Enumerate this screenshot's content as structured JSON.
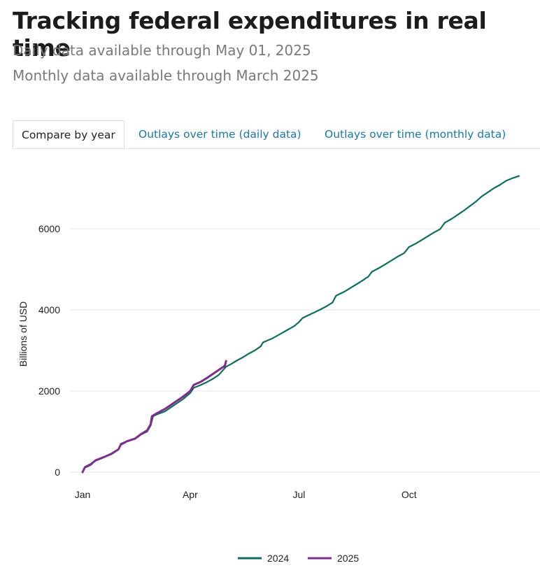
{
  "header": {
    "title": "Tracking federal expenditures in real time",
    "daily_note": "Daily data available through May 01, 2025",
    "monthly_note": "Monthly data available through March 2025"
  },
  "tabs": [
    {
      "label": "Compare by year",
      "active": true
    },
    {
      "label": "Outlays over time (daily data)",
      "active": false
    },
    {
      "label": "Outlays over time (monthly data)",
      "active": false
    }
  ],
  "chart_data": {
    "type": "line",
    "title": "",
    "xlabel": "",
    "ylabel": "Billions of USD",
    "x_unit": "day_of_year",
    "x_ticks": [
      {
        "label": "Jan",
        "day": 1
      },
      {
        "label": "Apr",
        "day": 91
      },
      {
        "label": "Jul",
        "day": 182
      },
      {
        "label": "Oct",
        "day": 274
      }
    ],
    "xlim": [
      1,
      366
    ],
    "ylim": [
      0,
      7500
    ],
    "y_ticks": [
      0,
      2000,
      4000,
      6000
    ],
    "grid": "horizontal",
    "legend_position": "bottom",
    "series": [
      {
        "name": "2024",
        "color": "#0e6e5e",
        "points": [
          [
            1,
            0
          ],
          [
            3,
            110
          ],
          [
            8,
            180
          ],
          [
            12,
            300
          ],
          [
            18,
            370
          ],
          [
            25,
            440
          ],
          [
            31,
            560
          ],
          [
            33,
            700
          ],
          [
            38,
            760
          ],
          [
            45,
            820
          ],
          [
            50,
            930
          ],
          [
            55,
            1000
          ],
          [
            58,
            1150
          ],
          [
            60,
            1380
          ],
          [
            63,
            1420
          ],
          [
            70,
            1500
          ],
          [
            75,
            1600
          ],
          [
            80,
            1700
          ],
          [
            85,
            1800
          ],
          [
            91,
            1950
          ],
          [
            94,
            2080
          ],
          [
            100,
            2150
          ],
          [
            105,
            2220
          ],
          [
            110,
            2300
          ],
          [
            115,
            2400
          ],
          [
            121,
            2600
          ],
          [
            125,
            2660
          ],
          [
            130,
            2750
          ],
          [
            135,
            2830
          ],
          [
            140,
            2920
          ],
          [
            145,
            3000
          ],
          [
            150,
            3100
          ],
          [
            152,
            3200
          ],
          [
            160,
            3300
          ],
          [
            166,
            3400
          ],
          [
            172,
            3500
          ],
          [
            178,
            3600
          ],
          [
            182,
            3700
          ],
          [
            185,
            3800
          ],
          [
            190,
            3870
          ],
          [
            195,
            3940
          ],
          [
            200,
            4010
          ],
          [
            205,
            4090
          ],
          [
            210,
            4180
          ],
          [
            213,
            4350
          ],
          [
            220,
            4450
          ],
          [
            225,
            4540
          ],
          [
            230,
            4630
          ],
          [
            235,
            4720
          ],
          [
            240,
            4820
          ],
          [
            243,
            4940
          ],
          [
            250,
            5050
          ],
          [
            255,
            5140
          ],
          [
            260,
            5230
          ],
          [
            265,
            5320
          ],
          [
            270,
            5400
          ],
          [
            274,
            5550
          ],
          [
            280,
            5640
          ],
          [
            285,
            5730
          ],
          [
            290,
            5820
          ],
          [
            295,
            5910
          ],
          [
            300,
            5990
          ],
          [
            304,
            6150
          ],
          [
            310,
            6250
          ],
          [
            315,
            6350
          ],
          [
            320,
            6450
          ],
          [
            325,
            6560
          ],
          [
            330,
            6670
          ],
          [
            335,
            6800
          ],
          [
            340,
            6900
          ],
          [
            345,
            7000
          ],
          [
            350,
            7080
          ],
          [
            355,
            7180
          ],
          [
            360,
            7240
          ],
          [
            366,
            7300
          ]
        ]
      },
      {
        "name": "2025",
        "color": "#7d2e8b",
        "points": [
          [
            1,
            0
          ],
          [
            3,
            120
          ],
          [
            8,
            200
          ],
          [
            12,
            290
          ],
          [
            18,
            360
          ],
          [
            25,
            450
          ],
          [
            31,
            560
          ],
          [
            33,
            680
          ],
          [
            38,
            760
          ],
          [
            45,
            830
          ],
          [
            50,
            940
          ],
          [
            55,
            1030
          ],
          [
            58,
            1180
          ],
          [
            59,
            1380
          ],
          [
            63,
            1450
          ],
          [
            70,
            1560
          ],
          [
            75,
            1660
          ],
          [
            80,
            1760
          ],
          [
            85,
            1860
          ],
          [
            91,
            2000
          ],
          [
            94,
            2150
          ],
          [
            100,
            2230
          ],
          [
            105,
            2320
          ],
          [
            110,
            2420
          ],
          [
            115,
            2520
          ],
          [
            120,
            2620
          ],
          [
            121,
            2740
          ]
        ]
      }
    ]
  }
}
